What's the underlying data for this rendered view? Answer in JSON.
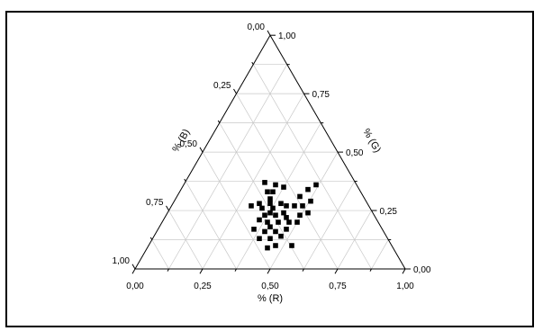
{
  "chart_data": {
    "type": "scatter",
    "subtype": "ternary",
    "axes": {
      "R": {
        "label": "% (R)",
        "ticks": [
          "0,00",
          "0,25",
          "0,50",
          "0,75",
          "1,00"
        ]
      },
      "G": {
        "label": "% (G)",
        "ticks": [
          "0,00",
          "0,25",
          "0,50",
          "0,75",
          "1,00"
        ]
      },
      "B": {
        "label": "% (B)",
        "ticks": [
          "0,00",
          "0,25",
          "0,50",
          "0,75",
          "1,00"
        ]
      }
    },
    "grid": true,
    "grid_step": 0.125,
    "marker": "square",
    "marker_color": "#000000",
    "points": [
      {
        "x": 0.52,
        "y": 0.36
      },
      {
        "x": 0.48,
        "y": 0.37
      },
      {
        "x": 0.55,
        "y": 0.35
      },
      {
        "x": 0.49,
        "y": 0.33
      },
      {
        "x": 0.51,
        "y": 0.33
      },
      {
        "x": 0.5,
        "y": 0.3
      },
      {
        "x": 0.46,
        "y": 0.28
      },
      {
        "x": 0.5,
        "y": 0.28
      },
      {
        "x": 0.54,
        "y": 0.28
      },
      {
        "x": 0.43,
        "y": 0.27
      },
      {
        "x": 0.47,
        "y": 0.26
      },
      {
        "x": 0.51,
        "y": 0.26
      },
      {
        "x": 0.56,
        "y": 0.27
      },
      {
        "x": 0.59,
        "y": 0.27
      },
      {
        "x": 0.62,
        "y": 0.27
      },
      {
        "x": 0.64,
        "y": 0.24
      },
      {
        "x": 0.61,
        "y": 0.23
      },
      {
        "x": 0.6,
        "y": 0.2
      },
      {
        "x": 0.56,
        "y": 0.22
      },
      {
        "x": 0.52,
        "y": 0.23
      },
      {
        "x": 0.48,
        "y": 0.23
      },
      {
        "x": 0.46,
        "y": 0.21
      },
      {
        "x": 0.49,
        "y": 0.2
      },
      {
        "x": 0.53,
        "y": 0.2
      },
      {
        "x": 0.57,
        "y": 0.2
      },
      {
        "x": 0.44,
        "y": 0.17
      },
      {
        "x": 0.48,
        "y": 0.16
      },
      {
        "x": 0.52,
        "y": 0.16
      },
      {
        "x": 0.56,
        "y": 0.17
      },
      {
        "x": 0.54,
        "y": 0.14
      },
      {
        "x": 0.5,
        "y": 0.13
      },
      {
        "x": 0.46,
        "y": 0.13
      },
      {
        "x": 0.52,
        "y": 0.1
      },
      {
        "x": 0.58,
        "y": 0.1
      },
      {
        "x": 0.49,
        "y": 0.09
      },
      {
        "x": 0.61,
        "y": 0.31
      },
      {
        "x": 0.64,
        "y": 0.34
      },
      {
        "x": 0.67,
        "y": 0.36
      },
      {
        "x": 0.65,
        "y": 0.29
      },
      {
        "x": 0.5,
        "y": 0.24
      },
      {
        "x": 0.5,
        "y": 0.18
      },
      {
        "x": 0.55,
        "y": 0.24
      }
    ]
  }
}
